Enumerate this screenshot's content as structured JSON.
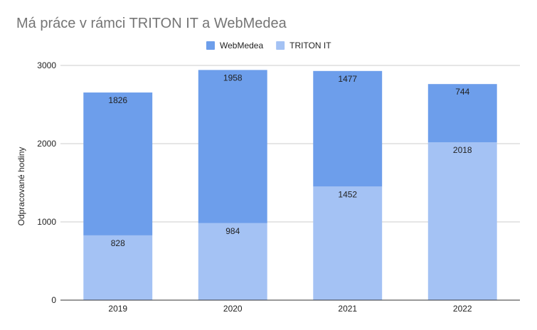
{
  "chart_data": {
    "type": "bar",
    "stacked": true,
    "title": "Má práce v rámci TRITON IT a WebMedea",
    "xlabel": "",
    "ylabel": "Odpracované hodiny",
    "categories": [
      "2019",
      "2020",
      "2021",
      "2022"
    ],
    "series": [
      {
        "name": "TRITON IT",
        "values": [
          828,
          984,
          1452,
          2018
        ],
        "color": "#a4c2f4"
      },
      {
        "name": "WebMedea",
        "values": [
          1826,
          1958,
          1477,
          744
        ],
        "color": "#6d9eeb"
      }
    ],
    "legend_order": [
      "WebMedea",
      "TRITON IT"
    ],
    "ylim": [
      0,
      3000
    ],
    "yticks": [
      0,
      1000,
      2000,
      3000
    ],
    "grid": true,
    "legend_position": "top"
  }
}
